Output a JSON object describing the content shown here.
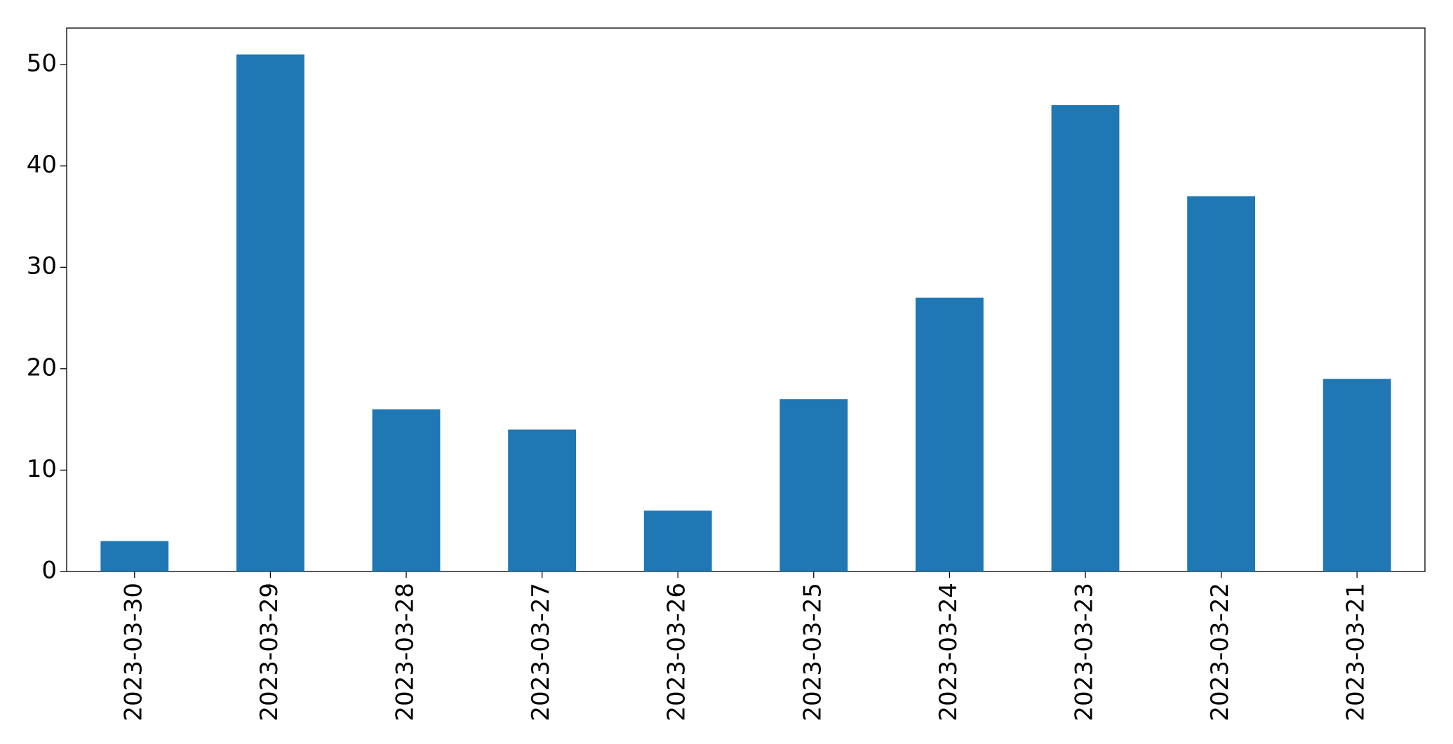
{
  "chart_data": {
    "type": "bar",
    "categories": [
      "2023-03-30",
      "2023-03-29",
      "2023-03-28",
      "2023-03-27",
      "2023-03-26",
      "2023-03-25",
      "2023-03-24",
      "2023-03-23",
      "2023-03-22",
      "2023-03-21"
    ],
    "values": [
      3,
      51,
      16,
      14,
      6,
      17,
      27,
      46,
      37,
      19
    ],
    "color": "#1f77b4",
    "ylim": [
      0,
      53.6
    ],
    "yticks": [
      0,
      10,
      20,
      30,
      40,
      50
    ],
    "grid": false
  }
}
